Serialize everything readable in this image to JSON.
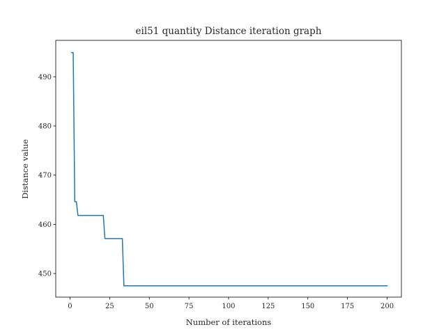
{
  "chart_data": {
    "type": "line",
    "title": "eil51 quantity Distance iteration graph",
    "xlabel": "Number of iterations",
    "ylabel": "Distance value",
    "xlim": [
      -9,
      209
    ],
    "ylim": [
      445.2,
      497.4
    ],
    "xticks": [
      0,
      25,
      50,
      75,
      100,
      125,
      150,
      175,
      200
    ],
    "yticks": [
      450,
      460,
      470,
      480,
      490
    ],
    "grid": false,
    "legend": "none",
    "series": [
      {
        "color": "#1f77b4",
        "x": [
          1,
          2,
          3,
          4,
          5,
          20,
          21,
          22,
          33,
          34,
          200
        ],
        "y": [
          494.9,
          494.9,
          464.6,
          464.6,
          461.8,
          461.8,
          461.8,
          457.1,
          457.1,
          447.5,
          447.5
        ]
      }
    ]
  }
}
